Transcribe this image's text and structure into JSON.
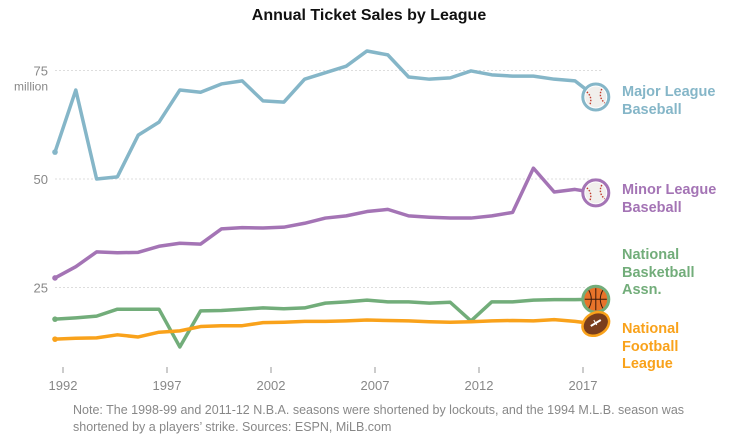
{
  "chart_data": {
    "type": "line",
    "title": "Annual Ticket Sales by League",
    "xlabel": "",
    "ylabel": "",
    "y_unit_label": "million",
    "x": [
      1992,
      1993,
      1994,
      1995,
      1996,
      1997,
      1998,
      1999,
      2000,
      2001,
      2002,
      2003,
      2004,
      2005,
      2006,
      2007,
      2008,
      2009,
      2010,
      2011,
      2012,
      2013,
      2014,
      2015,
      2016,
      2017,
      2018
    ],
    "x_ticks": [
      "1992",
      "1997",
      "2002",
      "2007",
      "2012",
      "2017"
    ],
    "y_ticks": [
      "25",
      "50",
      "75"
    ],
    "ylim": [
      7,
      83
    ],
    "grid": "horizontal dotted",
    "legend": "direct labels at right",
    "series": [
      {
        "name": "Major League Baseball",
        "color": "#85b6c8",
        "icon": "baseball-icon",
        "values": [
          56.2,
          70.5,
          50.0,
          50.5,
          60.1,
          63.1,
          70.5,
          70.0,
          71.9,
          72.6,
          68.0,
          67.7,
          73.0,
          74.5,
          76.0,
          79.5,
          78.6,
          73.5,
          73.0,
          73.3,
          74.9,
          74.0,
          73.7,
          73.7,
          73.0,
          72.6,
          68.9
        ]
      },
      {
        "name": "Minor League Baseball",
        "color": "#a474b5",
        "icon": "baseball-icon",
        "values": [
          27.2,
          29.8,
          33.2,
          33.0,
          33.1,
          34.5,
          35.2,
          35.0,
          38.5,
          38.8,
          38.7,
          38.9,
          39.8,
          41.0,
          41.5,
          42.5,
          43.0,
          41.5,
          41.2,
          41.0,
          41.0,
          41.5,
          42.3,
          52.5,
          47.0,
          47.6,
          46.8
        ]
      },
      {
        "name": "National Basketball Assn.",
        "color": "#72ad7a",
        "icon": "basketball-icon",
        "values": [
          17.7,
          18.0,
          18.4,
          20.0,
          20.0,
          20.0,
          11.3,
          19.6,
          19.7,
          20.0,
          20.3,
          20.1,
          20.3,
          21.4,
          21.7,
          22.1,
          21.7,
          21.7,
          21.4,
          21.6,
          17.3,
          21.7,
          21.7,
          22.1,
          22.2,
          22.2,
          22.3
        ]
      },
      {
        "name": "National Football League",
        "color": "#f9a21b",
        "icon": "football-icon",
        "values": [
          13.1,
          13.3,
          13.4,
          14.1,
          13.6,
          14.7,
          15.0,
          16.0,
          16.2,
          16.2,
          16.9,
          17.0,
          17.2,
          17.2,
          17.3,
          17.5,
          17.4,
          17.3,
          17.1,
          17.0,
          17.1,
          17.3,
          17.4,
          17.3,
          17.6,
          17.2,
          16.6
        ]
      }
    ],
    "series_label_lines": [
      [
        "Major League",
        "Baseball"
      ],
      [
        "Minor League",
        "Baseball"
      ],
      [
        "National",
        "Basketball",
        "Assn."
      ],
      [
        "National",
        "Football",
        "League"
      ]
    ],
    "note": "Note: The 1998-99 and 2011-12 N.B.A. seasons were shortened by lockouts, and the 1994 M.L.B. season was shortened by a players’ strike. Sources: ESPN, MiLB.com"
  }
}
